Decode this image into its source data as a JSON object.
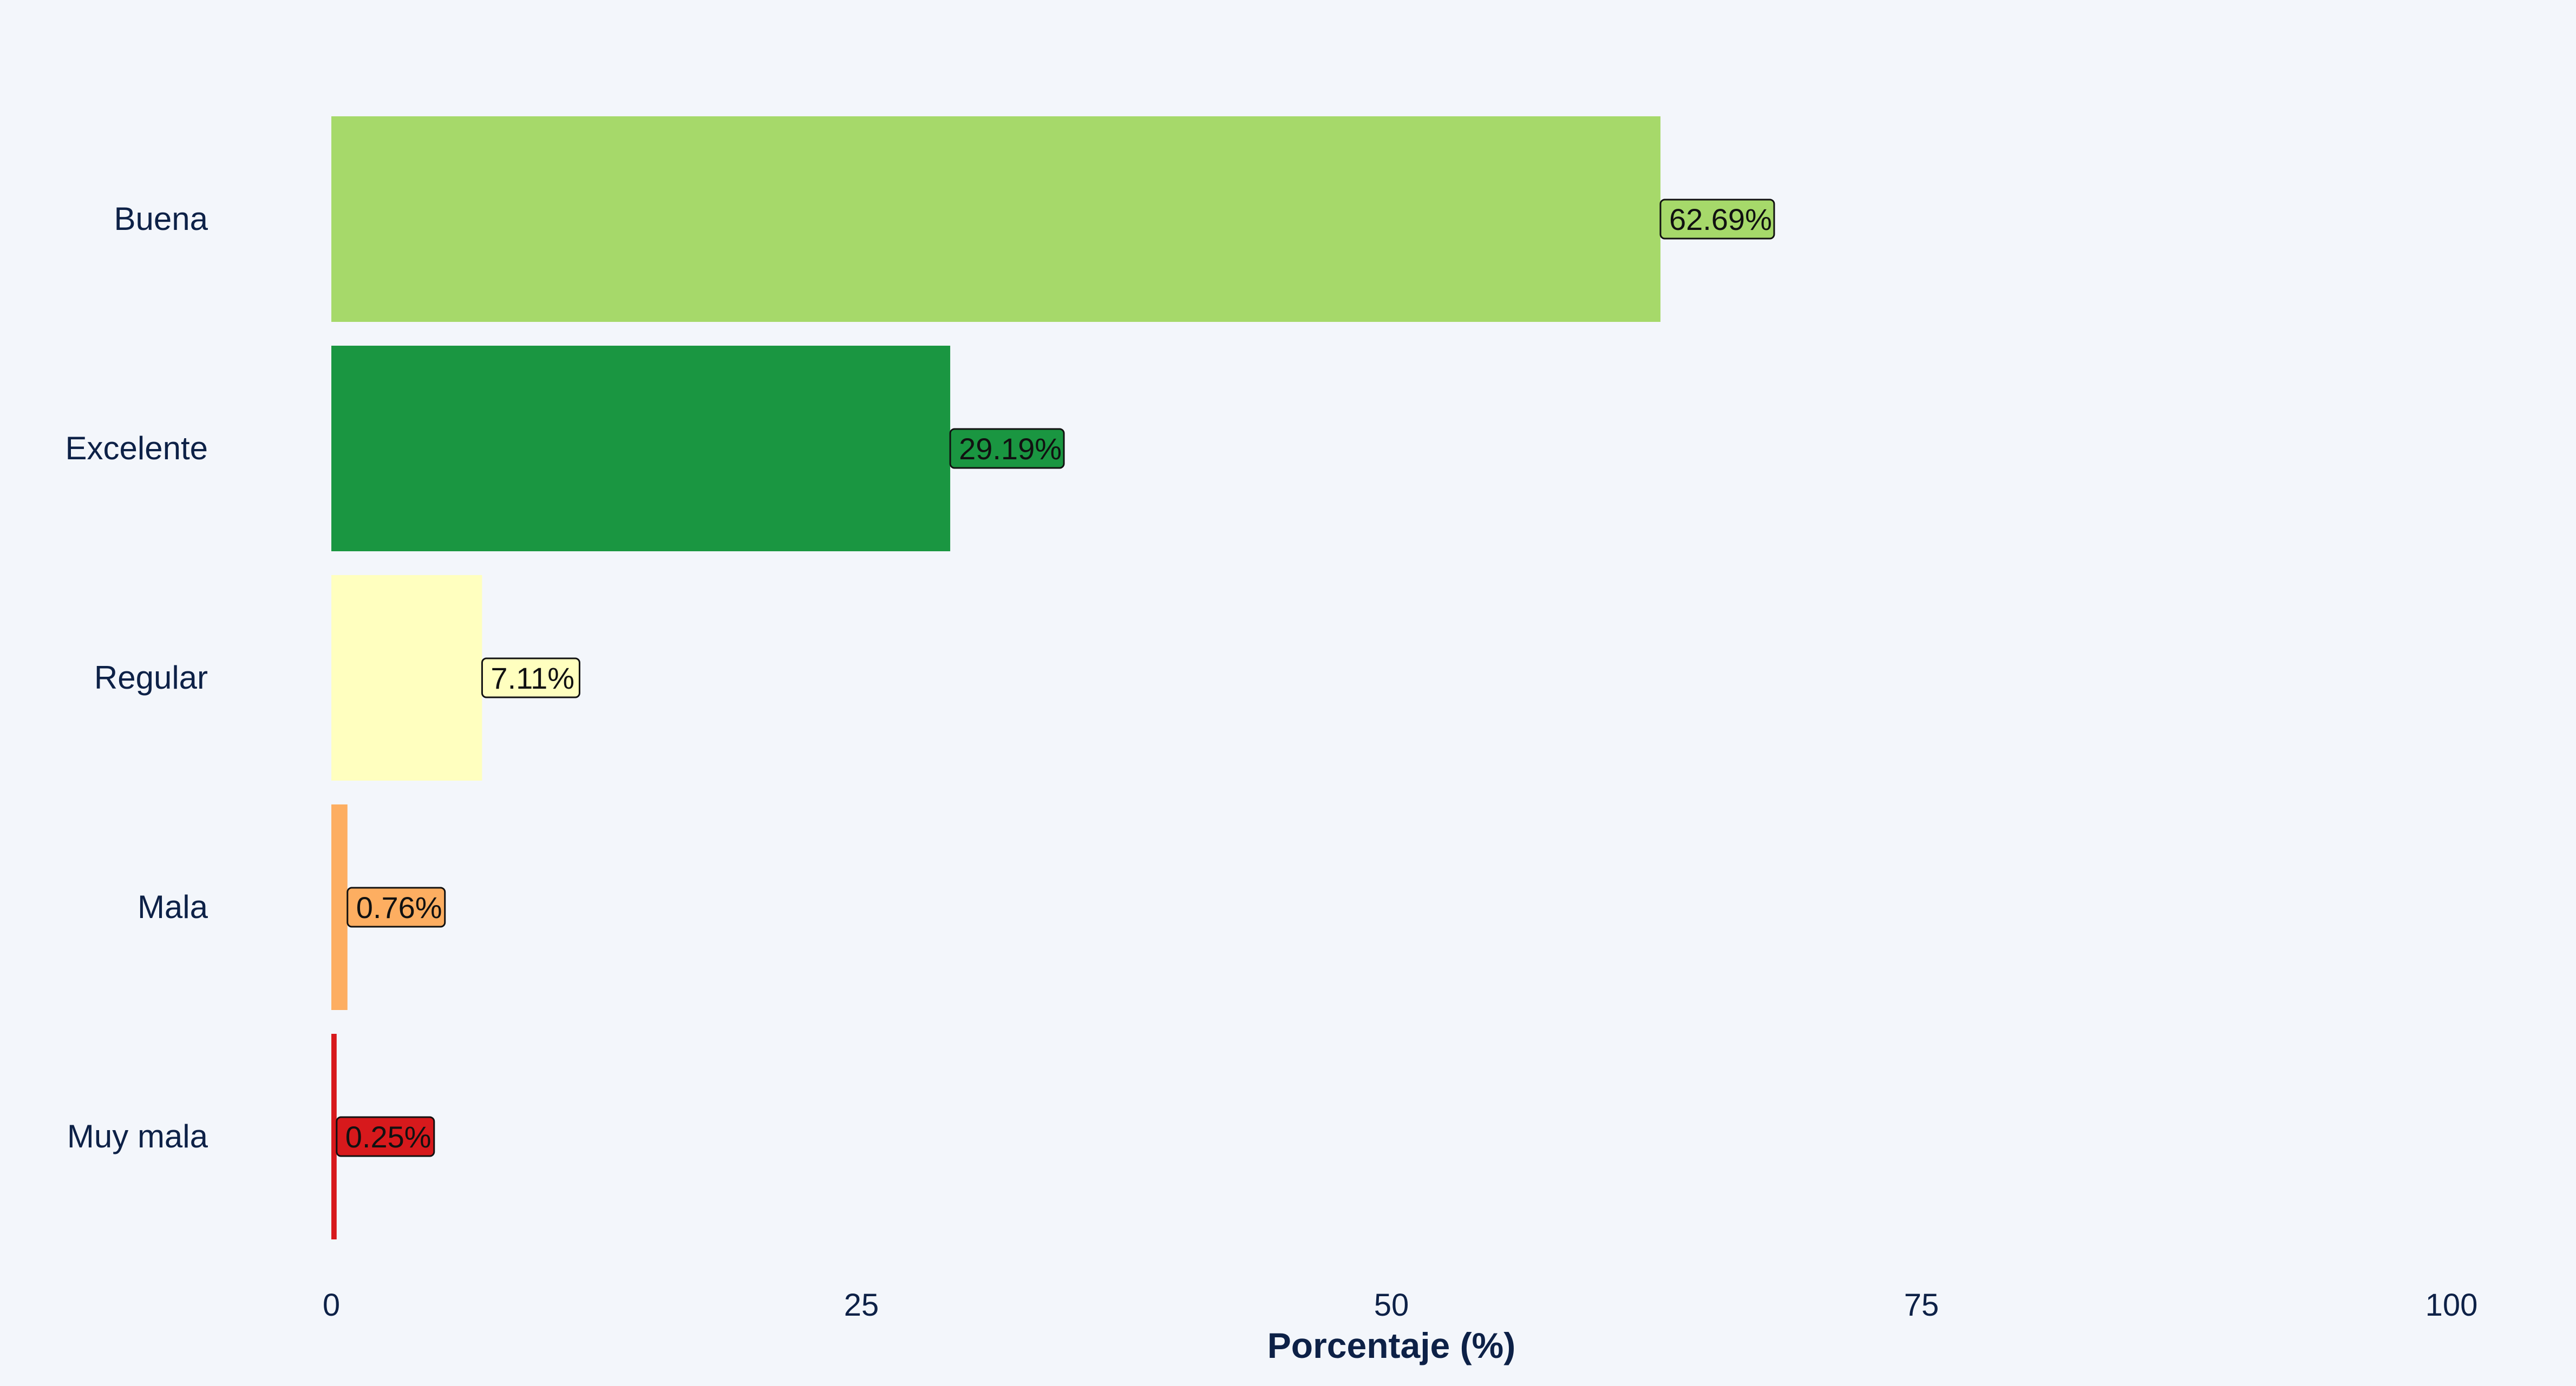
{
  "chart_data": {
    "type": "bar",
    "orientation": "horizontal",
    "categories": [
      "Buena",
      "Excelente",
      "Regular",
      "Mala",
      "Muy mala"
    ],
    "values": [
      62.69,
      29.19,
      7.11,
      0.76,
      0.25
    ],
    "value_labels": [
      "62.69%",
      "29.19%",
      "7.11%",
      "0.76%",
      "0.25%"
    ],
    "colors": [
      "#a6d96a",
      "#1a9641",
      "#ffffbf",
      "#fdae61",
      "#d7191c"
    ],
    "xlabel": "Porcentaje (%)",
    "ylabel": "",
    "xlim": [
      0,
      100
    ],
    "xticks": [
      0,
      25,
      50,
      75,
      100
    ],
    "xtick_labels": [
      "0",
      "25",
      "50",
      "75",
      "100"
    ],
    "grid": false,
    "legend": "none"
  }
}
